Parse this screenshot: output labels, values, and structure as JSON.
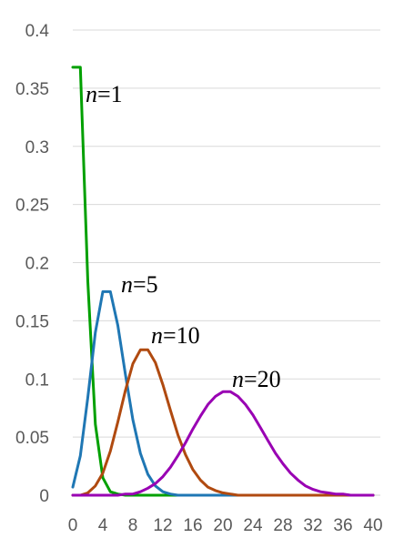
{
  "chart_data": {
    "type": "line",
    "title": "",
    "xlabel": "",
    "ylabel": "",
    "xlim": [
      0,
      40
    ],
    "ylim": [
      0,
      0.4
    ],
    "grid": true,
    "legend": "none",
    "x_ticks": [
      "0",
      "4",
      "8",
      "12",
      "16",
      "20",
      "24",
      "28",
      "32",
      "36",
      "40"
    ],
    "y_ticks": [
      "0",
      "0.05",
      "0.1",
      "0.15",
      "0.2",
      "0.25",
      "0.3",
      "0.35",
      "0.4"
    ],
    "series": [
      {
        "label_var": "n",
        "label_rest": "=1",
        "color": "#00a000",
        "x": [
          0,
          1,
          2,
          3,
          4,
          5,
          6,
          7,
          8,
          9,
          10,
          11,
          12,
          13,
          14,
          15,
          16,
          17,
          18,
          19,
          20,
          21,
          22,
          23,
          24,
          25,
          26,
          27,
          28,
          29,
          30,
          31,
          32,
          33,
          34,
          35,
          36,
          37,
          38,
          39,
          40
        ],
        "y": [
          0.368,
          0.368,
          0.184,
          0.061,
          0.015,
          0.003,
          0.001,
          0,
          0,
          0,
          0,
          0,
          0,
          0,
          0,
          0,
          0,
          0,
          0,
          0,
          0,
          0,
          0,
          0,
          0,
          0,
          0,
          0,
          0,
          0,
          0,
          0,
          0,
          0,
          0,
          0,
          0,
          0,
          0,
          0,
          0
        ]
      },
      {
        "label_var": "n",
        "label_rest": "=5",
        "color": "#1f77b4",
        "x": [
          0,
          1,
          2,
          3,
          4,
          5,
          6,
          7,
          8,
          9,
          10,
          11,
          12,
          13,
          14,
          15,
          16,
          17,
          18,
          19,
          20,
          21,
          22,
          23,
          24,
          25,
          26,
          27,
          28,
          29,
          30,
          31,
          32,
          33,
          34,
          35,
          36,
          37,
          38,
          39,
          40
        ],
        "y": [
          0.007,
          0.034,
          0.084,
          0.14,
          0.175,
          0.175,
          0.146,
          0.104,
          0.065,
          0.036,
          0.018,
          0.008,
          0.003,
          0.001,
          0,
          0,
          0,
          0,
          0,
          0,
          0,
          0,
          0,
          0,
          0,
          0,
          0,
          0,
          0,
          0,
          0,
          0,
          0,
          0,
          0,
          0,
          0,
          0,
          0,
          0,
          0
        ]
      },
      {
        "label_var": "n",
        "label_rest": "=10",
        "color": "#b04a10",
        "x": [
          0,
          1,
          2,
          3,
          4,
          5,
          6,
          7,
          8,
          9,
          10,
          11,
          12,
          13,
          14,
          15,
          16,
          17,
          18,
          19,
          20,
          21,
          22,
          23,
          24,
          25,
          26,
          27,
          28,
          29,
          30,
          31,
          32,
          33,
          34,
          35,
          36,
          37,
          38,
          39,
          40
        ],
        "y": [
          0,
          0,
          0.002,
          0.008,
          0.019,
          0.038,
          0.063,
          0.09,
          0.113,
          0.125,
          0.125,
          0.114,
          0.095,
          0.073,
          0.052,
          0.035,
          0.022,
          0.013,
          0.007,
          0.004,
          0.002,
          0.001,
          0,
          0,
          0,
          0,
          0,
          0,
          0,
          0,
          0,
          0,
          0,
          0,
          0,
          0,
          0,
          0,
          0,
          0,
          0
        ]
      },
      {
        "label_var": "n",
        "label_rest": "=20",
        "color": "#9900b3",
        "x": [
          0,
          1,
          2,
          3,
          4,
          5,
          6,
          7,
          8,
          9,
          10,
          11,
          12,
          13,
          14,
          15,
          16,
          17,
          18,
          19,
          20,
          21,
          22,
          23,
          24,
          25,
          26,
          27,
          28,
          29,
          30,
          31,
          32,
          33,
          34,
          35,
          36,
          37,
          38,
          39,
          40
        ],
        "y": [
          0,
          0,
          0,
          0,
          0,
          0,
          0,
          0.001,
          0.001,
          0.003,
          0.006,
          0.01,
          0.016,
          0.024,
          0.034,
          0.045,
          0.057,
          0.068,
          0.078,
          0.085,
          0.089,
          0.089,
          0.085,
          0.078,
          0.069,
          0.058,
          0.047,
          0.036,
          0.027,
          0.019,
          0.013,
          0.008,
          0.005,
          0.003,
          0.002,
          0.001,
          0.001,
          0,
          0,
          0,
          0
        ]
      }
    ]
  }
}
